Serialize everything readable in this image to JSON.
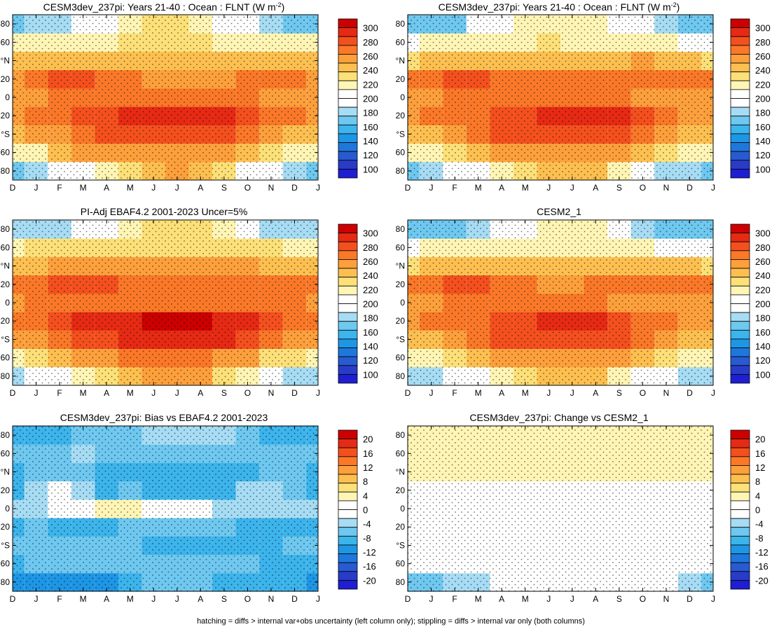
{
  "footnote": "hatching = diffs > internal var+obs uncertainty (left column only); stippling = diffs > internal var only (both columns)",
  "month_labels": [
    "D",
    "J",
    "F",
    "M",
    "A",
    "M",
    "J",
    "J",
    "A",
    "S",
    "O",
    "N",
    "D",
    "J"
  ],
  "lat_labels": [
    "80",
    "60",
    "°N",
    "20",
    "0",
    "20",
    "°S",
    "60",
    "80"
  ],
  "colorbar_absolute": {
    "labels": [
      "300",
      "280",
      "260",
      "240",
      "220",
      "200",
      "180",
      "160",
      "140",
      "120",
      "100"
    ],
    "colors": [
      "#cc0000",
      "#e62a14",
      "#f4501e",
      "#fa7828",
      "#fda03c",
      "#fdc050",
      "#fde078",
      "#fff5b4",
      "#ffffff",
      "#ffffff",
      "#a6dcf4",
      "#6ec8f0",
      "#3cb4ec",
      "#1e96e6",
      "#1e78dc",
      "#285ad2",
      "#283cc8",
      "#1e1ed2"
    ]
  },
  "colorbar_diff": {
    "labels": [
      "20",
      "16",
      "12",
      "8",
      "4",
      "0",
      "-4",
      "-8",
      "-12",
      "-16",
      "-20"
    ],
    "colors": [
      "#cc0000",
      "#e62a14",
      "#f4501e",
      "#fa7828",
      "#fda03c",
      "#fdc050",
      "#fde078",
      "#fff5b4",
      "#ffffff",
      "#ffffff",
      "#a6dcf4",
      "#6ec8f0",
      "#3cb4ec",
      "#1e96e6",
      "#1e78dc",
      "#285ad2",
      "#283cc8",
      "#1e1ed2"
    ]
  },
  "chart_data": [
    {
      "type": "heatmap",
      "title": "CESM3dev_237pi: Years 21-40 : Ocean : FLNT (W m",
      "title_sup": "-2",
      "title_end": ")",
      "xlabel": "",
      "ylabel": "",
      "x": [
        "D",
        "J",
        "F",
        "M",
        "A",
        "M",
        "J",
        "J",
        "A",
        "S",
        "O",
        "N",
        "D",
        "J"
      ],
      "y": [
        -80,
        -60,
        -40,
        -20,
        0,
        20,
        40,
        60,
        80
      ],
      "ylim": [
        -90,
        90
      ],
      "values": [
        [
          175,
          185,
          195,
          205,
          215,
          230,
          240,
          245,
          240,
          225,
          205,
          190,
          180,
          175
        ],
        [
          215,
          222,
          235,
          245,
          250,
          255,
          255,
          255,
          255,
          250,
          240,
          225,
          218,
          215
        ],
        [
          240,
          245,
          255,
          265,
          270,
          275,
          275,
          275,
          275,
          270,
          260,
          250,
          242,
          240
        ],
        [
          255,
          260,
          265,
          270,
          275,
          280,
          285,
          285,
          285,
          280,
          270,
          260,
          257,
          255
        ],
        [
          250,
          255,
          260,
          262,
          262,
          262,
          262,
          262,
          262,
          260,
          258,
          255,
          252,
          250
        ],
        [
          255,
          262,
          272,
          272,
          265,
          260,
          255,
          255,
          255,
          255,
          258,
          258,
          256,
          255
        ],
        [
          235,
          238,
          240,
          242,
          240,
          240,
          238,
          238,
          238,
          238,
          238,
          236,
          235,
          235
        ],
        [
          215,
          222,
          222,
          222,
          222,
          225,
          225,
          225,
          225,
          222,
          222,
          220,
          216,
          215
        ],
        [
          175,
          178,
          180,
          195,
          205,
          215,
          225,
          225,
          220,
          210,
          195,
          180,
          176,
          175
        ]
      ],
      "colorbar": "colorbar_absolute"
    },
    {
      "type": "heatmap",
      "title": "CESM3dev_237pi: Years 21-40 : Ocean : FLNT (W m",
      "title_sup": "-2",
      "title_end": ")",
      "xlabel": "",
      "ylabel": "",
      "x": [
        "D",
        "J",
        "F",
        "M",
        "A",
        "M",
        "J",
        "J",
        "A",
        "S",
        "O",
        "N",
        "D",
        "J"
      ],
      "y": [
        -80,
        -60,
        -40,
        -20,
        0,
        20,
        40,
        60,
        80
      ],
      "ylim": [
        -90,
        90
      ],
      "values": [
        [
          172,
          182,
          192,
          202,
          212,
          228,
          238,
          242,
          238,
          222,
          202,
          188,
          178,
          172
        ],
        [
          213,
          220,
          232,
          243,
          248,
          253,
          253,
          253,
          253,
          248,
          238,
          223,
          216,
          213
        ],
        [
          238,
          243,
          253,
          263,
          268,
          273,
          273,
          273,
          273,
          268,
          258,
          248,
          240,
          238
        ],
        [
          252,
          258,
          262,
          266,
          270,
          276,
          282,
          284,
          284,
          278,
          268,
          258,
          254,
          252
        ],
        [
          248,
          252,
          256,
          258,
          258,
          258,
          258,
          258,
          258,
          256,
          254,
          252,
          250,
          248
        ],
        [
          258,
          264,
          274,
          274,
          266,
          260,
          256,
          256,
          258,
          260,
          262,
          262,
          260,
          258
        ],
        [
          233,
          236,
          238,
          240,
          240,
          240,
          238,
          238,
          240,
          242,
          245,
          240,
          236,
          233
        ],
        [
          210,
          216,
          216,
          216,
          218,
          222,
          224,
          222,
          222,
          220,
          218,
          214,
          211,
          210
        ],
        [
          172,
          175,
          176,
          190,
          200,
          212,
          222,
          222,
          218,
          205,
          190,
          178,
          174,
          172
        ]
      ],
      "colorbar": "colorbar_absolute"
    },
    {
      "type": "heatmap",
      "title": "PI-Adj EBAF4.2 2001-2023 Uncer=5%",
      "title_sup": "",
      "title_end": "",
      "xlabel": "",
      "ylabel": "",
      "x": [
        "D",
        "J",
        "F",
        "M",
        "A",
        "M",
        "J",
        "J",
        "A",
        "S",
        "O",
        "N",
        "D",
        "J"
      ],
      "y": [
        -80,
        -60,
        -40,
        -20,
        0,
        20,
        40,
        60,
        80
      ],
      "ylim": [
        -90,
        90
      ],
      "values": [
        [
          185,
          195,
          205,
          215,
          225,
          238,
          246,
          250,
          246,
          232,
          212,
          198,
          188,
          185
        ],
        [
          222,
          228,
          240,
          250,
          255,
          260,
          260,
          260,
          260,
          255,
          246,
          232,
          225,
          222
        ],
        [
          245,
          250,
          260,
          270,
          275,
          280,
          282,
          282,
          282,
          278,
          268,
          258,
          248,
          245
        ],
        [
          262,
          266,
          272,
          278,
          282,
          286,
          290,
          290,
          290,
          286,
          278,
          268,
          264,
          262
        ],
        [
          254,
          258,
          262,
          264,
          264,
          264,
          264,
          264,
          264,
          262,
          260,
          258,
          256,
          254
        ],
        [
          262,
          266,
          274,
          276,
          272,
          266,
          262,
          262,
          262,
          262,
          262,
          262,
          262,
          262
        ],
        [
          242,
          244,
          246,
          248,
          248,
          248,
          246,
          246,
          246,
          246,
          246,
          244,
          243,
          242
        ],
        [
          220,
          226,
          226,
          226,
          228,
          230,
          230,
          230,
          230,
          228,
          228,
          226,
          222,
          220
        ],
        [
          182,
          185,
          188,
          200,
          210,
          220,
          228,
          228,
          224,
          214,
          200,
          188,
          184,
          182
        ]
      ],
      "colorbar": "colorbar_absolute"
    },
    {
      "type": "heatmap",
      "title": "CESM2_1",
      "title_sup": "",
      "title_end": "",
      "xlabel": "",
      "ylabel": "",
      "x": [
        "D",
        "J",
        "F",
        "M",
        "A",
        "M",
        "J",
        "J",
        "A",
        "S",
        "O",
        "N",
        "D",
        "J"
      ],
      "y": [
        -80,
        -60,
        -40,
        -20,
        0,
        20,
        40,
        60,
        80
      ],
      "ylim": [
        -90,
        90
      ],
      "values": [
        [
          178,
          188,
          196,
          206,
          214,
          226,
          236,
          240,
          236,
          222,
          204,
          190,
          182,
          178
        ],
        [
          214,
          220,
          232,
          242,
          248,
          252,
          254,
          254,
          254,
          248,
          238,
          224,
          216,
          214
        ],
        [
          238,
          242,
          252,
          262,
          268,
          272,
          274,
          274,
          274,
          268,
          258,
          248,
          240,
          238
        ],
        [
          252,
          256,
          262,
          266,
          270,
          276,
          282,
          284,
          282,
          276,
          266,
          258,
          254,
          252
        ],
        [
          248,
          252,
          256,
          256,
          256,
          256,
          256,
          256,
          256,
          254,
          252,
          250,
          249,
          248
        ],
        [
          256,
          262,
          272,
          272,
          264,
          258,
          254,
          254,
          256,
          258,
          260,
          260,
          258,
          256
        ],
        [
          232,
          234,
          236,
          238,
          238,
          238,
          236,
          236,
          238,
          240,
          242,
          238,
          234,
          232
        ],
        [
          206,
          212,
          212,
          212,
          214,
          218,
          220,
          218,
          218,
          216,
          214,
          210,
          207,
          206
        ],
        [
          168,
          170,
          172,
          186,
          196,
          208,
          218,
          218,
          214,
          200,
          186,
          174,
          170,
          168
        ]
      ],
      "colorbar": "colorbar_absolute"
    },
    {
      "type": "heatmap",
      "title": "CESM3dev_237pi: Bias vs EBAF4.2 2001-2023",
      "title_sup": "",
      "title_end": "",
      "xlabel": "",
      "ylabel": "",
      "x": [
        "D",
        "J",
        "F",
        "M",
        "A",
        "M",
        "J",
        "J",
        "A",
        "S",
        "O",
        "N",
        "D",
        "J"
      ],
      "y": [
        -80,
        -60,
        -40,
        -20,
        0,
        20,
        40,
        60,
        80
      ],
      "ylim": [
        -90,
        90
      ],
      "values": [
        [
          -10,
          -10,
          -10,
          -10,
          -10,
          -8,
          -6,
          -5,
          -6,
          -7,
          -7,
          -8,
          -8,
          -10
        ],
        [
          -7,
          -6,
          -5,
          -5,
          -5,
          -5,
          -5,
          -5,
          -5,
          -5,
          -6,
          -7,
          -7,
          -7
        ],
        [
          -5,
          -5,
          -5,
          -5,
          -5,
          -5,
          -7,
          -7,
          -7,
          -8,
          -8,
          -8,
          -6,
          -5
        ],
        [
          -7,
          -6,
          -7,
          -8,
          -7,
          -6,
          -5,
          -5,
          -5,
          -6,
          -8,
          -8,
          -7,
          -7
        ],
        [
          -4,
          -3,
          -2,
          2,
          4,
          4,
          2,
          -2,
          -2,
          -3,
          -4,
          -3,
          -3,
          -4
        ],
        [
          -7,
          -4,
          -2,
          -4,
          -7,
          -6,
          -7,
          -7,
          -7,
          -7,
          -4,
          -4,
          -6,
          -7
        ],
        [
          -7,
          -6,
          -6,
          -6,
          -8,
          -8,
          -8,
          -8,
          -8,
          -8,
          -7,
          -5,
          -6,
          -7
        ],
        [
          -5,
          -6,
          -6,
          -4,
          -6,
          -5,
          -5,
          -5,
          -5,
          -6,
          -6,
          -6,
          -5,
          -5
        ],
        [
          -7,
          -7,
          -8,
          -5,
          -5,
          -5,
          -3,
          -3,
          -4,
          -4,
          -5,
          -8,
          -8,
          -7
        ]
      ],
      "colorbar": "colorbar_diff"
    },
    {
      "type": "heatmap",
      "title": "CESM3dev_237pi: Change vs CESM2_1",
      "title_sup": "",
      "title_end": "",
      "xlabel": "",
      "ylabel": "",
      "x": [
        "D",
        "J",
        "F",
        "M",
        "A",
        "M",
        "J",
        "J",
        "A",
        "S",
        "O",
        "N",
        "D",
        "J"
      ],
      "y": [
        -80,
        -60,
        -40,
        -20,
        0,
        20,
        40,
        60,
        80
      ],
      "ylim": [
        -90,
        90
      ],
      "values": [
        [
          -6,
          -6,
          -4,
          -4,
          -2,
          2,
          2,
          2,
          2,
          1,
          -2,
          -2,
          -3,
          -6
        ],
        [
          -1,
          0,
          0,
          1,
          0,
          1,
          1,
          1,
          1,
          2,
          2,
          -1,
          -1,
          -1
        ],
        [
          0,
          1,
          1,
          1,
          0,
          1,
          1,
          1,
          1,
          0,
          0,
          0,
          0,
          0
        ],
        [
          0,
          2,
          0,
          0,
          0,
          0,
          0,
          0,
          2,
          2,
          2,
          0,
          0,
          0
        ],
        [
          0,
          0,
          2,
          2,
          2,
          2,
          2,
          2,
          2,
          2,
          2,
          2,
          1,
          0
        ],
        [
          2,
          2,
          2,
          2,
          2,
          2,
          2,
          2,
          2,
          2,
          2,
          2,
          2,
          2
        ],
        [
          3,
          3,
          3,
          3,
          3,
          3,
          3,
          3,
          3,
          3,
          3,
          3,
          3,
          3
        ],
        [
          4,
          4,
          4,
          4,
          4,
          4,
          4,
          4,
          4,
          4,
          4,
          4,
          4,
          4
        ],
        [
          4,
          4,
          4,
          4,
          4,
          4,
          4,
          4,
          4,
          4,
          4,
          4,
          4,
          4
        ]
      ],
      "colorbar": "colorbar_diff"
    }
  ]
}
